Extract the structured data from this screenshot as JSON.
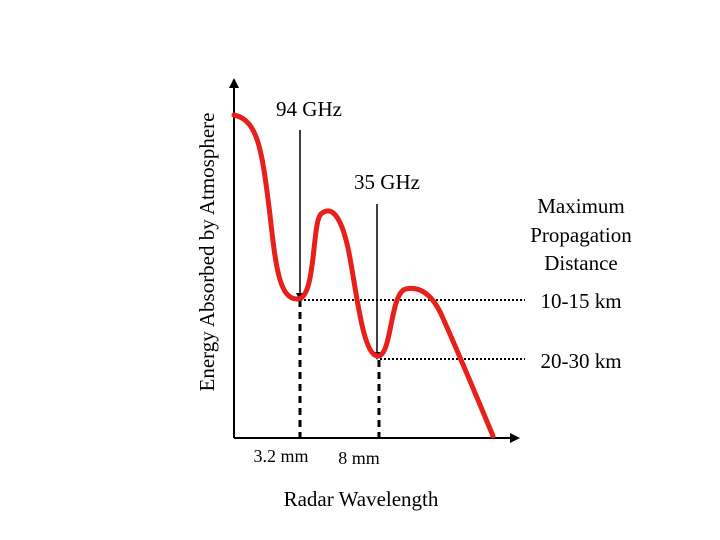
{
  "diagram": {
    "y_axis_label": "Energy Absorbed by Atmosphere",
    "x_axis_label": "Radar Wavelength",
    "frequency_markers": [
      {
        "label": "94 GHz",
        "wavelength": "3.2 mm"
      },
      {
        "label": "35 GHz",
        "wavelength": "8 mm"
      }
    ],
    "legend_title": [
      "Maximum",
      "Propagation",
      "Distance"
    ],
    "distances": [
      "10-15 km",
      "20-30 km"
    ],
    "colors": {
      "curve": "#e8201a",
      "axes": "#000000",
      "reference_lines": "#000000",
      "background": "#ffffff"
    }
  }
}
